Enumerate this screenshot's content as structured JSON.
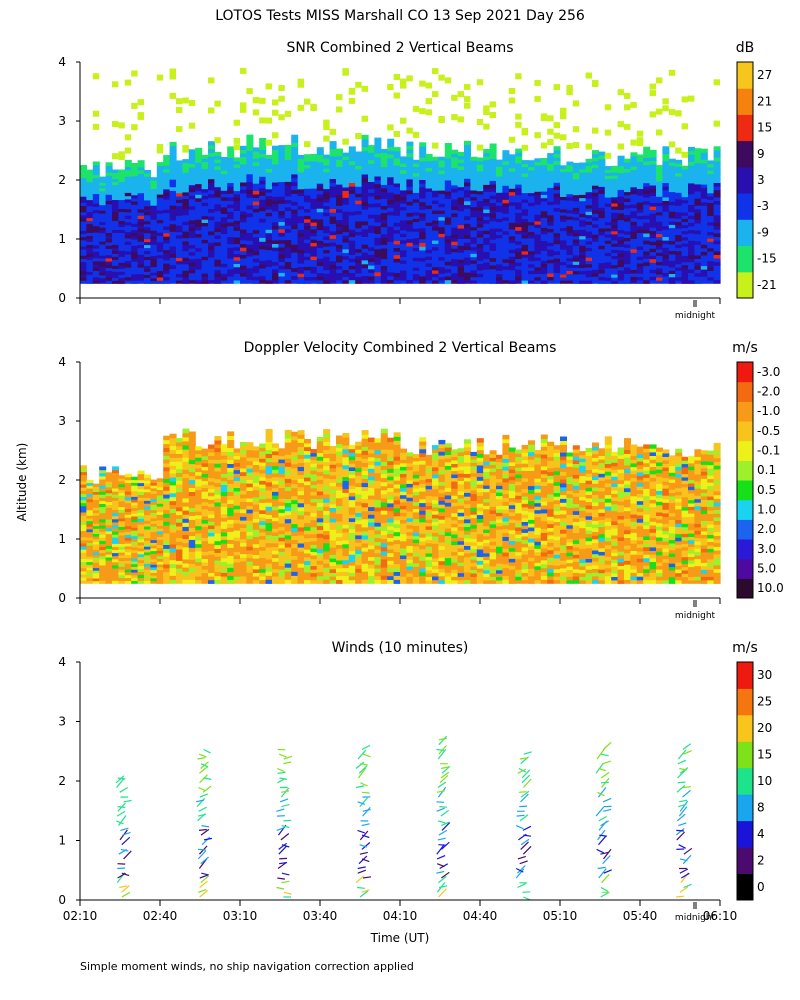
{
  "figure": {
    "title": "LOTOS Tests MISS Marshall CO  13 Sep 2021 Day 256",
    "ylabel": "Altitude (km)",
    "xlabel": "Time (UT)",
    "footnote": "Simple moment winds, no ship navigation correction applied",
    "midnight_label": "midnight",
    "time_ticks": [
      "02:10",
      "02:40",
      "03:10",
      "03:40",
      "04:10",
      "04:40",
      "05:10",
      "05:40",
      "06:10"
    ]
  },
  "chart_data": [
    {
      "type": "heatmap",
      "title": "SNR Combined 2 Vertical Beams",
      "units": "dB",
      "ylim": [
        0,
        4
      ],
      "yticks": [
        "0",
        "1",
        "2",
        "3",
        "4"
      ],
      "xlim": [
        "02:10",
        "06:10"
      ],
      "colorbar_labels": [
        "-21",
        "-15",
        "-9",
        "-3",
        "3",
        "9",
        "15",
        "21",
        "27"
      ],
      "colors": [
        "#c8f01a",
        "#1ee36a",
        "#1bb3ee",
        "#1032e8",
        "#2a0fb0",
        "#3d0a5e",
        "#ee2a12",
        "#f5820f",
        "#f7c61c"
      ],
      "approx_top_km": [
        2.2,
        2.5,
        2.6,
        2.6,
        2.5,
        2.5,
        2.4,
        2.4
      ]
    },
    {
      "type": "heatmap",
      "title": "Doppler Velocity Combined 2 Vertical Beams",
      "units": "m/s",
      "ylim": [
        0,
        4
      ],
      "yticks": [
        "0",
        "1",
        "2",
        "3",
        "4"
      ],
      "xlim": [
        "02:10",
        "06:10"
      ],
      "colorbar_labels": [
        "10.0",
        "5.0",
        "3.0",
        "2.0",
        "1.0",
        "0.5",
        "0.1",
        "-0.1",
        "-0.5",
        "-1.0",
        "-2.0",
        "-3.0"
      ],
      "colors": [
        "#2b0a2e",
        "#4e0aa0",
        "#2a1ad8",
        "#1a64f0",
        "#1ad3f0",
        "#16e018",
        "#9ef02a",
        "#eef01a",
        "#f7c31c",
        "#f79a18",
        "#f36a10",
        "#ee1a10"
      ],
      "approx_top_km": [
        2.1,
        2.7,
        2.7,
        2.7,
        2.6,
        2.6,
        2.6,
        2.5
      ]
    },
    {
      "type": "scatter",
      "title": "Winds (10 minutes)",
      "units": "m/s",
      "ylim": [
        0,
        4
      ],
      "yticks": [
        "0",
        "1",
        "2",
        "3",
        "4"
      ],
      "xlim": [
        "02:10",
        "06:10"
      ],
      "colorbar_labels": [
        "0",
        "2",
        "4",
        "8",
        "10",
        "15",
        "20",
        "25",
        "30"
      ],
      "colors": [
        "#000000",
        "#4a0a6e",
        "#1a14d8",
        "#1aa6ee",
        "#1de38a",
        "#7ee21a",
        "#f7c51c",
        "#f5760f",
        "#ee1a10"
      ],
      "profile_times": [
        "02:25",
        "02:55",
        "03:25",
        "03:55",
        "04:25",
        "04:55",
        "05:25",
        "05:55"
      ],
      "profile_tops_km": [
        2.1,
        2.6,
        2.6,
        2.6,
        2.7,
        2.5,
        2.6,
        2.6
      ]
    }
  ]
}
